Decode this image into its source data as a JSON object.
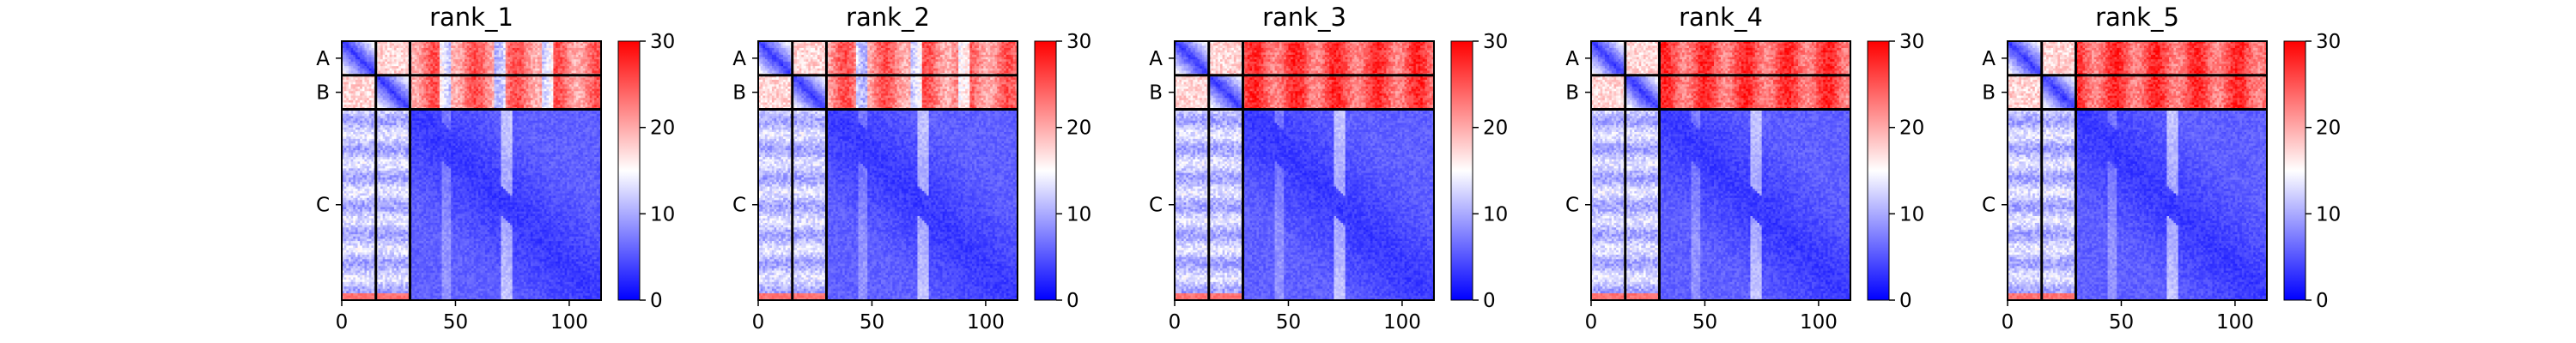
{
  "chart_data": {
    "type": "heatmap",
    "description_kind": "predicted aligned error panels",
    "xlim": [
      0,
      114
    ],
    "x_ticks": [
      0,
      50,
      100
    ],
    "chain_labels": [
      "A",
      "B",
      "C"
    ],
    "chain_boundaries": [
      0,
      15,
      30,
      114
    ],
    "colorbar": {
      "min": 0,
      "max": 30,
      "ticks": [
        0,
        10,
        20,
        30
      ],
      "colormap": [
        "#0000ff",
        "#ffffff",
        "#ff0000"
      ]
    },
    "panels": [
      {
        "title": "rank_1"
      },
      {
        "title": "rank_2"
      },
      {
        "title": "rank_3"
      },
      {
        "title": "rank_4"
      },
      {
        "title": "rank_5"
      }
    ]
  }
}
